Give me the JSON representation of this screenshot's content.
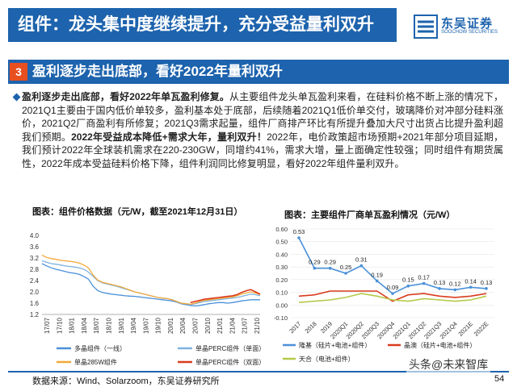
{
  "header": {
    "title": "组件：龙头集中度继续提升，充分受益量利双升",
    "logo_name": "东吴证券",
    "logo_en": "SOOCHOW SECURITIES",
    "logo_mark": "SCS"
  },
  "section": {
    "number": "3",
    "title": "盈利逐步走出底部，看好2022年量利双升"
  },
  "paragraph": {
    "bold1": "盈利逐步走出底部，看好2022年单瓦盈利修复。",
    "text1": "从主要组件龙头单瓦盈利来看，在硅料价格不断上涨的情况下，2021Q1主要由于国内低价单较多，盈利基本处于底部，后续随着2021Q1低价单交付，玻璃降价对冲部分硅料涨价，2021Q2厂商盈利有所修复；2021Q3需求起量，组件厂商排产环比有所提升叠加大尺寸出货占比提升盈利超我们预期。",
    "bold2": "2022年受益成本降低+需求大年，量利双升！",
    "text2": "2022年，电价政策超市场预期+2021年部分项目延期，我们预计2022年全球装机需求在220-230GW，同增约41%，需求大增，量上面确定性较强；同时组件有期货属性，2022年成本受益硅料价格下降，组件利润同比修复明显，看好2022年组件量利双升。"
  },
  "left_chart": {
    "title": "图表：组件价格数据（元/W，截至2021年12月31日）"
  },
  "right_chart": {
    "title": "图表：主要组件厂商单瓦盈利情况（元/W）"
  },
  "chart_data": [
    {
      "type": "line",
      "title": "图表：组件价格数据（元/W，截至2021年12月31日）",
      "y_ticks": [
        "4.0",
        "3.6",
        "3.2",
        "2.8",
        "2.4",
        "2.0",
        "1.6",
        "1.2"
      ],
      "ylim": [
        1.2,
        4.0
      ],
      "x_ticks": [
        "17/07",
        "17/10",
        "18/01",
        "18/04",
        "18/07",
        "18/10",
        "19/01",
        "19/04",
        "19/07",
        "19/10",
        "20/01",
        "20/04",
        "20/07",
        "20/10",
        "21/01",
        "21/04",
        "21/07",
        "21/10"
      ],
      "series": [
        {
          "name": "多晶组件（一线）",
          "color": "#4a90d9",
          "values": [
            3.0,
            2.92,
            2.85,
            2.8,
            2.76,
            2.72,
            2.68,
            2.66,
            2.62,
            2.55,
            2.45,
            2.2,
            2.05,
            1.98,
            1.95,
            1.92,
            1.9,
            1.88,
            1.86,
            1.85,
            1.84,
            1.82,
            1.8,
            1.78,
            1.76,
            1.74,
            1.72,
            1.7,
            1.68,
            1.64,
            1.58,
            1.55,
            1.52,
            1.5,
            1.52,
            1.55,
            1.58,
            1.6,
            1.62,
            1.62,
            1.6,
            1.62,
            1.65,
            1.68,
            1.7,
            1.72,
            1.72,
            1.72
          ]
        },
        {
          "name": "单晶PERC组件（单面）",
          "color": "#7fb3e0",
          "values": [
            3.1,
            3.05,
            3.0,
            2.98,
            2.95,
            2.92,
            2.9,
            2.88,
            2.85,
            2.8,
            2.7,
            2.55,
            2.4,
            2.32,
            2.28,
            2.24,
            2.2,
            2.15,
            2.1,
            2.05,
            2.0,
            1.96,
            1.92,
            1.88,
            1.84,
            1.8,
            1.78,
            1.76,
            1.72,
            1.66,
            1.6,
            1.58,
            1.55,
            1.58,
            1.62,
            1.66,
            1.68,
            1.7,
            1.72,
            1.74,
            1.76,
            1.78,
            1.8,
            1.84,
            1.88,
            1.92,
            1.9,
            1.86
          ]
        },
        {
          "name": "单晶285W组件",
          "color": "#f2a93b",
          "values": [
            3.3,
            3.22,
            3.18,
            3.15,
            3.12,
            3.1,
            3.08,
            3.06,
            3.02,
            2.95,
            2.85,
            2.6,
            2.42,
            2.34,
            2.3,
            2.26,
            2.22,
            2.18,
            2.12,
            2.06,
            2.0,
            1.96,
            1.92,
            1.88,
            1.84,
            1.8,
            1.78,
            1.76,
            1.72,
            1.66,
            1.6,
            1.58,
            1.56,
            1.6,
            1.66,
            1.7,
            1.72,
            1.74,
            1.76,
            1.78,
            1.8,
            1.82,
            1.86,
            1.92,
            1.96,
            2.0,
            1.96,
            1.9
          ]
        },
        {
          "name": "单晶PERC组件（双面）",
          "color": "#d93b1e",
          "values": [
            null,
            null,
            null,
            null,
            null,
            null,
            null,
            null,
            null,
            null,
            null,
            null,
            null,
            null,
            null,
            null,
            null,
            null,
            null,
            null,
            null,
            null,
            null,
            null,
            null,
            null,
            null,
            null,
            null,
            null,
            null,
            null,
            1.62,
            1.66,
            1.7,
            1.74,
            1.76,
            1.78,
            1.8,
            1.82,
            1.84,
            1.86,
            1.9,
            1.98,
            2.04,
            2.08,
            2.0,
            1.92
          ]
        }
      ]
    },
    {
      "type": "line",
      "title": "图表：主要组件厂商单瓦盈利情况（元/W）",
      "y_ticks": [
        "0.60",
        "0.50",
        "0.40",
        "0.30",
        "0.20",
        "0.10",
        "0.00",
        "-0.10"
      ],
      "ylim": [
        -0.1,
        0.6
      ],
      "categories": [
        "2017",
        "2018",
        "2019",
        "2020Q1",
        "2020Q2",
        "2020Q3",
        "2020Q4",
        "2021Q1",
        "2021Q2",
        "2021Q3",
        "2021Q4",
        "2021E",
        "2022E"
      ],
      "series": [
        {
          "name": "隆基（硅片+电池+组件）",
          "color": "#4a90d9",
          "values": [
            0.53,
            0.29,
            0.29,
            0.25,
            0.31,
            0.19,
            0.09,
            0.15,
            0.17,
            0.13,
            0.12,
            0.14,
            0.13
          ],
          "labels": [
            "0.53",
            "0.29",
            "0.29",
            "0.25",
            "0.31",
            "0.19",
            "0.09",
            "0.15",
            "0.17",
            "0.13",
            "0.12",
            "0.14",
            "0.13"
          ]
        },
        {
          "name": "晶澳（硅片+电池+组件）",
          "color": "#d93b1e",
          "values": [
            0.07,
            0.08,
            0.11,
            0.11,
            0.11,
            0.11,
            0.03,
            0.08,
            0.09,
            0.07,
            0.06,
            0.07,
            0.09
          ]
        },
        {
          "name": "天合（电池+组件）",
          "color": "#b5c94a",
          "values": [
            0.02,
            0.03,
            0.04,
            0.06,
            0.09,
            0.07,
            0.04,
            0.03,
            0.05,
            0.04,
            0.03,
            0.04,
            0.07
          ]
        }
      ]
    }
  ],
  "footer": {
    "source": "数据来源：Wind、Solarzoom，东吴证券研究所",
    "page": "54",
    "watermark": "头条@未来智库"
  }
}
